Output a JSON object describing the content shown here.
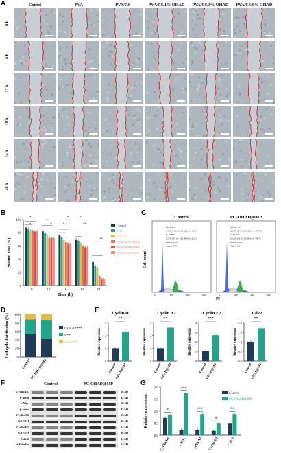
{
  "panel_letters": [
    "A",
    "B",
    "C",
    "D",
    "E",
    "F",
    "G"
  ],
  "panelA": {
    "columns": [
      "Contol",
      "PVA",
      "PVA/CS",
      "PVA/CS/1% OHAD",
      "PVA/CS/3% OHAD",
      "PVA/CS/6% OHAD"
    ],
    "rows": [
      "0 h",
      "6 h",
      "12 h",
      "18 h",
      "24 h",
      "48 h"
    ],
    "gap_fraction": [
      [
        0.36,
        0.36,
        0.36,
        0.36,
        0.36,
        0.36
      ],
      [
        0.33,
        0.32,
        0.32,
        0.31,
        0.3,
        0.3
      ],
      [
        0.28,
        0.27,
        0.26,
        0.24,
        0.22,
        0.22
      ],
      [
        0.24,
        0.23,
        0.22,
        0.2,
        0.18,
        0.17
      ],
      [
        0.2,
        0.19,
        0.18,
        0.16,
        0.13,
        0.12
      ],
      [
        0.1,
        0.09,
        0.07,
        0.05,
        0.03,
        0.03
      ]
    ],
    "line_color": "#d9302b"
  },
  "chart_data": [
    {
      "panel": "B",
      "type": "bar",
      "ylabel": "Wound area (%)",
      "xlabel": "Time (h)",
      "categories": [
        "6",
        "12",
        "18",
        "24",
        "48"
      ],
      "ylim": [
        0,
        100
      ],
      "yticks": [
        0,
        20,
        40,
        60,
        80,
        100
      ],
      "series": [
        {
          "name": "Control",
          "color": "#1f3b57",
          "values": [
            88,
            82,
            76,
            70,
            36
          ]
        },
        {
          "name": "PVA",
          "color": "#24a58a",
          "values": [
            86,
            80,
            74,
            68,
            30
          ]
        },
        {
          "name": "PVA/CS",
          "color": "#e9b84c",
          "values": [
            84,
            76,
            70,
            64,
            26
          ]
        },
        {
          "name": "PVA/CS/1% OHAD",
          "color": "#e3735a",
          "values": [
            83,
            72,
            66,
            60,
            14
          ]
        },
        {
          "name": "PVA/CS/3% OHAD",
          "color": "#d9534f",
          "values": [
            82,
            72,
            64,
            58,
            10
          ]
        },
        {
          "name": "PVA/CS/6% OHAD",
          "color": "#f08a7a",
          "values": [
            82,
            72,
            64,
            58,
            10
          ]
        }
      ],
      "significance": [
        "*",
        "*",
        "*",
        "*",
        "**",
        "*",
        "*",
        "**",
        "*",
        "**",
        "***",
        "**"
      ]
    },
    {
      "panel": "C",
      "type": "histogram",
      "ylabel": "Cell count",
      "xlabel": "PI",
      "plots": [
        {
          "title": "Control",
          "stats": [
            "G0: 4.20%",
            "G1: 68.91%  tG: 81.00%  cv: 4.10%",
            "S: 18.70%",
            "G2: 9.28%  tG: 100.84%  cv: 6.22%",
            "Debris: 1.3%",
            "Agg: 0.00%"
          ]
        },
        {
          "title": "PC-OHAD@MP",
          "stats": [
            "G0: 2.77%",
            "G1: 57.67%  tG: 95.62%  cv: 7.67%",
            "S: 38.49%",
            "G2: 10.0%  tG: 95.89%  cv: 7.87%",
            "Debris: 1.9%",
            "Agg: 0.2%"
          ]
        }
      ]
    },
    {
      "panel": "D",
      "type": "bar",
      "stacked": true,
      "ylabel": "Cell cycle distribution (%)",
      "categories": [
        "Control",
        "PC-OHAD@MP"
      ],
      "ylim": [
        0,
        100
      ],
      "yticks": [
        0,
        20,
        40,
        60,
        80,
        100
      ],
      "series": [
        {
          "name": "G0/G1****",
          "color": "#1f3b57",
          "values": [
            54,
            42
          ]
        },
        {
          "name": "S**",
          "color": "#24a58a",
          "values": [
            34,
            45
          ]
        },
        {
          "name": "G2/M**",
          "color": "#e9b84c",
          "values": [
            12,
            13
          ]
        }
      ]
    },
    {
      "panel": "E",
      "type": "bar",
      "subplots": [
        {
          "title": "Cyclin D1",
          "ylabel": "Relative expression",
          "categories": [
            "Control",
            "PC-OHAD@MP"
          ],
          "values": [
            1.0,
            2.3
          ],
          "ylim": [
            0,
            3
          ],
          "yticks": [
            0,
            1,
            2,
            3
          ],
          "sig": "**"
        },
        {
          "title": "Cyclin A2",
          "ylabel": "Relative expression",
          "categories": [
            "Control",
            "PC-OHAD@MP"
          ],
          "values": [
            1.0,
            2.6
          ],
          "ylim": [
            0,
            3
          ],
          "yticks": [
            0,
            1,
            2,
            3
          ],
          "sig": "**"
        },
        {
          "title": "Cyclin E2",
          "ylabel": "Relative expression",
          "categories": [
            "Control",
            "PC-OHAD@MP"
          ],
          "values": [
            1.0,
            2.7
          ],
          "ylim": [
            0,
            4
          ],
          "yticks": [
            0,
            1,
            2,
            3,
            4
          ],
          "sig": "***"
        },
        {
          "title": "Cdk2",
          "ylabel": "Relative expression",
          "categories": [
            "Control",
            "PC-OHAD@MP"
          ],
          "values": [
            1.0,
            1.7
          ],
          "ylim": [
            0,
            2
          ],
          "yticks": [
            0.0,
            0.5,
            1.0,
            1.5,
            2.0
          ],
          "sig": "**"
        }
      ],
      "colors": [
        "#1f3b57",
        "#24a58a"
      ]
    },
    {
      "panel": "G",
      "type": "bar",
      "ylabel": "Relative expression",
      "categories": [
        "Cyclin D1",
        "c-Myc",
        "Cyclin A2",
        "Cyclin E2",
        "Cdk 2"
      ],
      "ylim": [
        0,
        2.0
      ],
      "yticks": [
        0.0,
        0.5,
        1.0,
        1.5,
        2.0
      ],
      "series": [
        {
          "name": "Control",
          "color": "#1f3b57",
          "values": [
            0.72,
            0.22,
            0.22,
            0.18,
            0.48
          ]
        },
        {
          "name": "PC-OHAD@MP",
          "color": "#24a58a",
          "values": [
            0.85,
            1.75,
            0.88,
            0.48,
            0.88
          ]
        }
      ],
      "sig": [
        "*",
        "***",
        "***",
        "*",
        "**"
      ]
    }
  ],
  "panelF": {
    "groups": [
      "Control",
      "PC-OHAD@MP"
    ],
    "bands": [
      {
        "label": "Cyclin D1",
        "kd": "36 kD"
      },
      {
        "label": "β-actin",
        "kd": "42 kD"
      },
      {
        "label": "c-Myc",
        "kd": "60 kD"
      },
      {
        "label": "β-actin",
        "kd": "42 kD"
      },
      {
        "label": "Cyclin A2",
        "kd": "52 kD"
      },
      {
        "label": "GAPDH",
        "kd": "36 kD"
      },
      {
        "label": "Cyclin E2",
        "kd": "44 kD"
      },
      {
        "label": "GAPDH",
        "kd": "36 kD"
      },
      {
        "label": "Cdk 2",
        "kd": "34 kD"
      },
      {
        "label": "α-Tubulin",
        "kd": "55 kD"
      }
    ]
  }
}
